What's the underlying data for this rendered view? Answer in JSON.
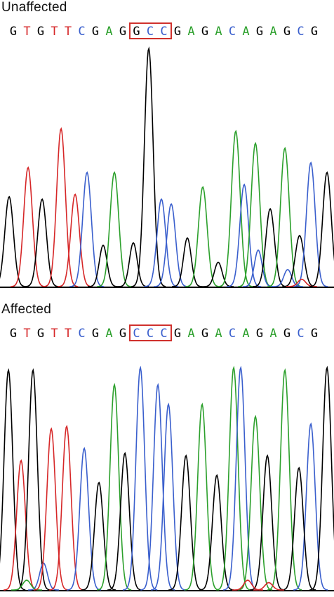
{
  "colors": {
    "G": "#000000",
    "A": "#2ca02c",
    "T": "#d62728",
    "C": "#3a5fcd",
    "box": "#d0312d"
  },
  "panels": [
    {
      "id": "unaffected",
      "title": "Unaffected",
      "sequence": [
        "G",
        "T",
        "G",
        "T",
        "T",
        "C",
        "G",
        "A",
        "G",
        "G",
        "C",
        "C",
        "G",
        "A",
        "G",
        "A",
        "C",
        "A",
        "G",
        "A",
        "G",
        "C",
        "G"
      ],
      "box_start": 9,
      "box_len": 3,
      "peaks": [
        {
          "b": "G",
          "x": 13,
          "h": 0.37
        },
        {
          "b": "T",
          "x": 40,
          "h": 0.49
        },
        {
          "b": "G",
          "x": 60,
          "h": 0.36
        },
        {
          "b": "T",
          "x": 87,
          "h": 0.65
        },
        {
          "b": "T",
          "x": 107,
          "h": 0.38
        },
        {
          "b": "C",
          "x": 124,
          "h": 0.47
        },
        {
          "b": "G",
          "x": 147,
          "h": 0.17
        },
        {
          "b": "A",
          "x": 163,
          "h": 0.47
        },
        {
          "b": "G",
          "x": 190,
          "h": 0.18
        },
        {
          "b": "G",
          "x": 212,
          "h": 0.98
        },
        {
          "b": "C",
          "x": 230,
          "h": 0.36
        },
        {
          "b": "C",
          "x": 244,
          "h": 0.34
        },
        {
          "b": "G",
          "x": 267,
          "h": 0.2
        },
        {
          "b": "A",
          "x": 289,
          "h": 0.41
        },
        {
          "b": "G",
          "x": 311,
          "h": 0.1
        },
        {
          "b": "A",
          "x": 336,
          "h": 0.64
        },
        {
          "b": "C",
          "x": 348,
          "h": 0.42
        },
        {
          "b": "A",
          "x": 364,
          "h": 0.59
        },
        {
          "b": "C",
          "x": 368,
          "h": 0.15
        },
        {
          "b": "G",
          "x": 385,
          "h": 0.32
        },
        {
          "b": "A",
          "x": 406,
          "h": 0.57
        },
        {
          "b": "C",
          "x": 410,
          "h": 0.07
        },
        {
          "b": "G",
          "x": 427,
          "h": 0.21
        },
        {
          "b": "C",
          "x": 443,
          "h": 0.51
        },
        {
          "b": "T",
          "x": 430,
          "h": 0.03
        },
        {
          "b": "G",
          "x": 466,
          "h": 0.47
        }
      ]
    },
    {
      "id": "affected",
      "title": "Affected",
      "sequence": [
        "G",
        "T",
        "G",
        "T",
        "T",
        "C",
        "G",
        "A",
        "G",
        "C",
        "C",
        "C",
        "G",
        "A",
        "G",
        "A",
        "C",
        "A",
        "G",
        "A",
        "G",
        "C",
        "G"
      ],
      "box_start": 9,
      "box_len": 3,
      "peaks": [
        {
          "b": "G",
          "x": 12,
          "h": 0.9
        },
        {
          "b": "T",
          "x": 30,
          "h": 0.53
        },
        {
          "b": "G",
          "x": 47,
          "h": 0.9
        },
        {
          "b": "C",
          "x": 62,
          "h": 0.11
        },
        {
          "b": "A",
          "x": 38,
          "h": 0.04
        },
        {
          "b": "T",
          "x": 73,
          "h": 0.66
        },
        {
          "b": "T",
          "x": 95,
          "h": 0.67
        },
        {
          "b": "C",
          "x": 120,
          "h": 0.58
        },
        {
          "b": "G",
          "x": 141,
          "h": 0.44
        },
        {
          "b": "A",
          "x": 163,
          "h": 0.84
        },
        {
          "b": "G",
          "x": 178,
          "h": 0.56
        },
        {
          "b": "C",
          "x": 200,
          "h": 0.91
        },
        {
          "b": "C",
          "x": 225,
          "h": 0.84
        },
        {
          "b": "C",
          "x": 240,
          "h": 0.76
        },
        {
          "b": "G",
          "x": 265,
          "h": 0.55
        },
        {
          "b": "A",
          "x": 288,
          "h": 0.76
        },
        {
          "b": "G",
          "x": 309,
          "h": 0.47
        },
        {
          "b": "A",
          "x": 333,
          "h": 0.91
        },
        {
          "b": "C",
          "x": 343,
          "h": 0.91
        },
        {
          "b": "A",
          "x": 364,
          "h": 0.71
        },
        {
          "b": "G",
          "x": 381,
          "h": 0.55
        },
        {
          "b": "A",
          "x": 406,
          "h": 0.9
        },
        {
          "b": "C",
          "x": 443,
          "h": 0.68
        },
        {
          "b": "G",
          "x": 426,
          "h": 0.5
        },
        {
          "b": "T",
          "x": 353,
          "h": 0.04
        },
        {
          "b": "T",
          "x": 383,
          "h": 0.03
        },
        {
          "b": "G",
          "x": 466,
          "h": 0.91
        }
      ]
    }
  ]
}
